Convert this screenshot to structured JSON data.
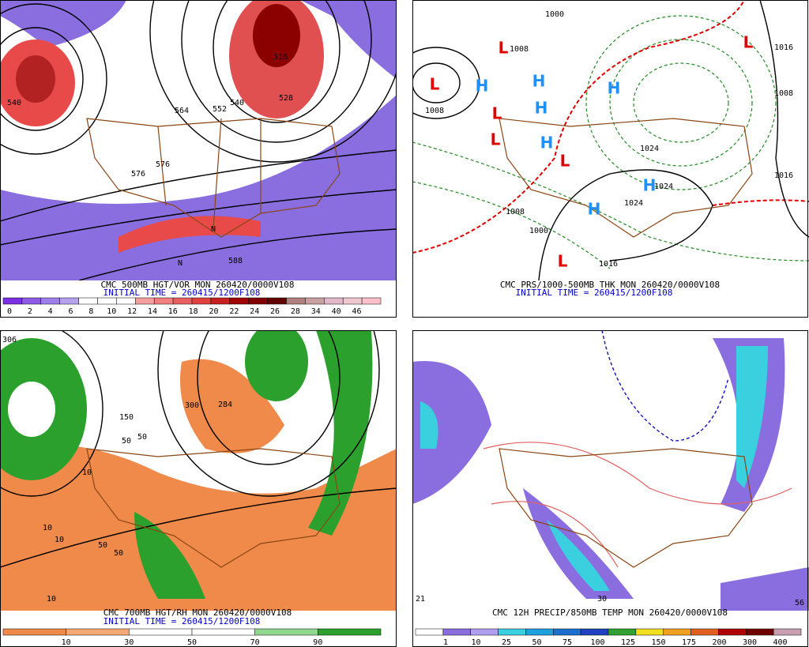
{
  "panels": [
    {
      "caption": "CMC 500MB HGT/VOR MON 260420/0000V108",
      "initial_time": "INITIAL TIME = 260415/1200F108",
      "legend": [
        "0",
        "2",
        "4",
        "6",
        "8",
        "10",
        "12",
        "14",
        "16",
        "18",
        "20",
        "22",
        "24",
        "26",
        "28",
        "34",
        "40",
        "46"
      ],
      "labels": [
        "540",
        "564",
        "552",
        "540",
        "516",
        "528",
        "576",
        "576",
        "588",
        "N",
        "N"
      ]
    },
    {
      "caption": "CMC PRS/1000-500MB THK MON 260420/0000V108",
      "initial_time": "INITIAL TIME = 260415/1200F108",
      "labels": [
        "1008",
        "1008",
        "1000",
        "1016",
        "1024",
        "1024",
        "1024",
        "1016",
        "1008",
        "1016",
        "1000",
        "1008"
      ],
      "centers": [
        "L",
        "H",
        "H",
        "L",
        "H",
        "L",
        "H",
        "L",
        "H",
        "H",
        "H",
        "L",
        "L",
        "L"
      ]
    },
    {
      "caption": "CMC 700MB HGT/RH MON 260420/0000V108",
      "initial_time": "INITIAL TIME = 260415/1200F108",
      "legend": [
        "10",
        "30",
        "50",
        "70",
        "90"
      ],
      "labels": [
        "306",
        "150",
        "50",
        "10",
        "284",
        "300",
        "50",
        "10",
        "50",
        "10",
        "50",
        "10"
      ]
    },
    {
      "caption": "CMC 12H PRECIP/850MB TEMP MON 260420/0000V108",
      "legend": [
        "1",
        "10",
        "25",
        "50",
        "75",
        "100",
        "125",
        "150",
        "175",
        "200",
        "300",
        "400"
      ],
      "labels": [
        "21",
        "56",
        "30"
      ]
    }
  ]
}
